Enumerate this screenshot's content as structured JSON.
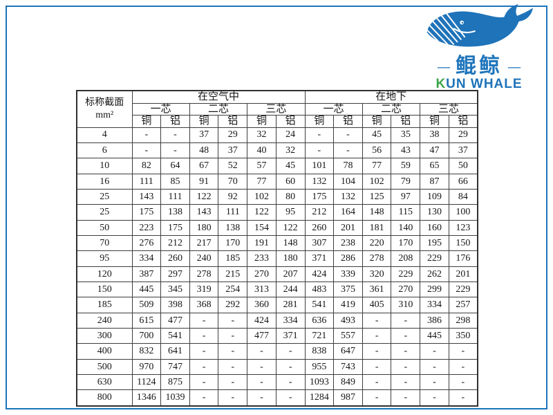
{
  "logo": {
    "brand_cn": "鲲鲸",
    "brand_en_first": "K",
    "brand_en_rest": "UN WHALE",
    "dash_left": "—",
    "dash_right": "—",
    "colors": {
      "blue": "#1e73b9",
      "green": "#3aa648",
      "frame": "#1b74ba"
    }
  },
  "table": {
    "corner_header_line1": "标称截面",
    "corner_header_line2": "mm²",
    "groups": [
      {
        "label": "在空气中"
      },
      {
        "label": "在地下"
      }
    ],
    "core_labels": [
      "一芯",
      "二芯",
      "三芯"
    ],
    "material_labels": [
      "铜",
      "铝"
    ],
    "rows": [
      {
        "size": "4",
        "air": [
          "-",
          "-",
          "37",
          "29",
          "32",
          "24"
        ],
        "ground": [
          "-",
          "-",
          "45",
          "35",
          "38",
          "29"
        ]
      },
      {
        "size": "6",
        "air": [
          "-",
          "-",
          "48",
          "37",
          "40",
          "32"
        ],
        "ground": [
          "-",
          "-",
          "56",
          "43",
          "47",
          "37"
        ]
      },
      {
        "size": "10",
        "air": [
          "82",
          "64",
          "67",
          "52",
          "57",
          "45"
        ],
        "ground": [
          "101",
          "78",
          "77",
          "59",
          "65",
          "50"
        ]
      },
      {
        "size": "16",
        "air": [
          "111",
          "85",
          "91",
          "70",
          "77",
          "60"
        ],
        "ground": [
          "132",
          "104",
          "102",
          "79",
          "87",
          "66"
        ]
      },
      {
        "size": "25",
        "air": [
          "143",
          "111",
          "122",
          "92",
          "102",
          "80"
        ],
        "ground": [
          "175",
          "132",
          "125",
          "97",
          "109",
          "84"
        ]
      },
      {
        "size": "25",
        "air": [
          "175",
          "138",
          "143",
          "111",
          "122",
          "95"
        ],
        "ground": [
          "212",
          "164",
          "148",
          "115",
          "130",
          "100"
        ]
      },
      {
        "size": "50",
        "air": [
          "223",
          "175",
          "180",
          "138",
          "154",
          "122"
        ],
        "ground": [
          "260",
          "201",
          "181",
          "140",
          "160",
          "123"
        ]
      },
      {
        "size": "70",
        "air": [
          "276",
          "212",
          "217",
          "170",
          "191",
          "148"
        ],
        "ground": [
          "307",
          "238",
          "220",
          "170",
          "195",
          "150"
        ]
      },
      {
        "size": "95",
        "air": [
          "334",
          "260",
          "240",
          "185",
          "233",
          "180"
        ],
        "ground": [
          "371",
          "286",
          "278",
          "208",
          "229",
          "176"
        ]
      },
      {
        "size": "120",
        "air": [
          "387",
          "297",
          "278",
          "215",
          "270",
          "207"
        ],
        "ground": [
          "424",
          "339",
          "320",
          "229",
          "262",
          "201"
        ]
      },
      {
        "size": "150",
        "air": [
          "445",
          "345",
          "319",
          "254",
          "313",
          "244"
        ],
        "ground": [
          "483",
          "375",
          "361",
          "270",
          "299",
          "229"
        ]
      },
      {
        "size": "185",
        "air": [
          "509",
          "398",
          "368",
          "292",
          "360",
          "281"
        ],
        "ground": [
          "541",
          "419",
          "405",
          "310",
          "334",
          "257"
        ]
      },
      {
        "size": "240",
        "air": [
          "615",
          "477",
          "-",
          "-",
          "424",
          "334"
        ],
        "ground": [
          "636",
          "493",
          "-",
          "-",
          "386",
          "298"
        ]
      },
      {
        "size": "300",
        "air": [
          "700",
          "541",
          "-",
          "-",
          "477",
          "371"
        ],
        "ground": [
          "721",
          "557",
          "-",
          "-",
          "445",
          "350"
        ]
      },
      {
        "size": "400",
        "air": [
          "832",
          "641",
          "-",
          "-",
          "-",
          "-"
        ],
        "ground": [
          "838",
          "647",
          "-",
          "-",
          "-",
          "-"
        ]
      },
      {
        "size": "500",
        "air": [
          "970",
          "747",
          "-",
          "-",
          "-",
          "-"
        ],
        "ground": [
          "955",
          "743",
          "-",
          "-",
          "-",
          "-"
        ]
      },
      {
        "size": "630",
        "air": [
          "1124",
          "875",
          "-",
          "-",
          "-",
          "-"
        ],
        "ground": [
          "1093",
          "849",
          "-",
          "-",
          "-",
          "-"
        ]
      },
      {
        "size": "800",
        "air": [
          "1346",
          "1039",
          "-",
          "-",
          "-",
          "-"
        ],
        "ground": [
          "1284",
          "987",
          "-",
          "-",
          "-",
          "-"
        ]
      }
    ]
  }
}
